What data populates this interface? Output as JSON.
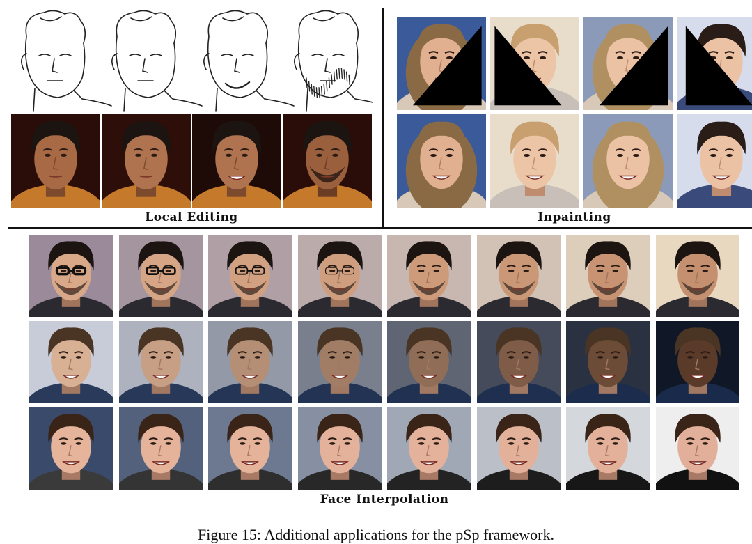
{
  "sections": {
    "local_editing": {
      "label": "Local Editing"
    },
    "inpainting": {
      "label": "Inpainting"
    },
    "face_interpolation": {
      "label": "Face Interpolation"
    }
  },
  "caption": "Figure 15: Additional applications for the pSp framework.",
  "colors": {
    "divider": "#111111",
    "dark_bg": "#2a0d08",
    "skin_warm": "#a86a45",
    "skin_light": "#e6b89a",
    "hair_dark": "#1c1410",
    "hair_blonde": "#b08a58",
    "mask": "#000000"
  }
}
